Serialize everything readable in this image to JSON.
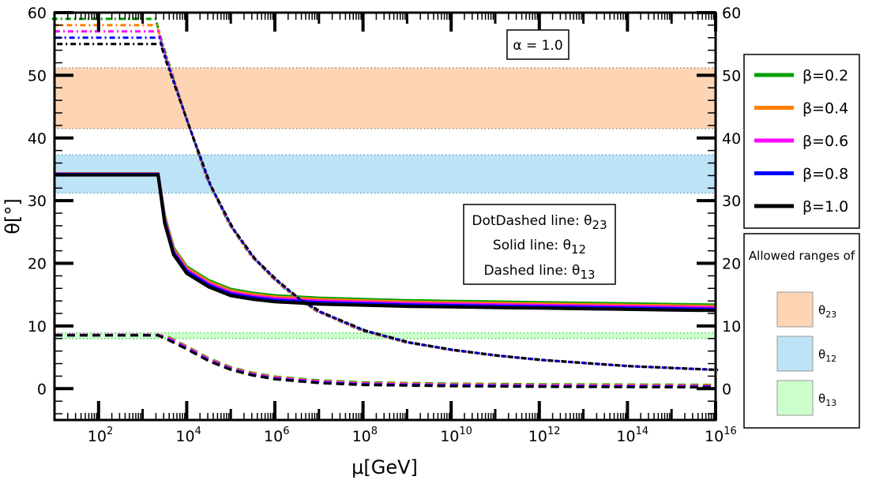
{
  "chart_data": {
    "type": "line",
    "xlabel": "μ[GeV]",
    "ylabel": "θ[°]",
    "xscale": "log10",
    "xlim_log10": [
      1,
      16
    ],
    "ylim": [
      -5,
      60
    ],
    "x_tick_exponents": [
      2,
      4,
      6,
      8,
      10,
      12,
      14,
      16
    ],
    "x_tick_base": "10",
    "y_ticks": [
      0,
      10,
      20,
      30,
      40,
      50,
      60
    ],
    "annotation_alpha": "α = 1.0",
    "line_style_box": {
      "dotdashed": "DotDashed line: θ",
      "dotdashed_sub": "23",
      "solid": "Solid line: θ",
      "solid_sub": "12",
      "dashed": "Dashed line: θ",
      "dashed_sub": "13"
    },
    "bands": [
      {
        "name": "θ",
        "sub": "23",
        "y0": 41.5,
        "y1": 51.2,
        "color": "#fdd5b4",
        "edge": "#808080"
      },
      {
        "name": "θ",
        "sub": "12",
        "y0": 31.2,
        "y1": 37.3,
        "color": "#bde3f6",
        "edge": "#5a9ab5"
      },
      {
        "name": "θ",
        "sub": "13",
        "y0": 8.0,
        "y1": 8.9,
        "color": "#ccffcc",
        "edge": "#33cc33"
      }
    ],
    "allowed_ranges_title": "Allowed ranges of",
    "series": [
      {
        "name": "β=0.2",
        "color": "#00a000",
        "theta23_start": 59.0,
        "theta12_start": 34.3,
        "theta13_start": 8.6
      },
      {
        "name": "β=0.4",
        "color": "#ff7f00",
        "theta23_start": 58.0,
        "theta12_start": 34.3,
        "theta13_start": 8.6
      },
      {
        "name": "β=0.6",
        "color": "#ff00ff",
        "theta23_start": 57.0,
        "theta12_start": 34.2,
        "theta13_start": 8.6
      },
      {
        "name": "β=0.8",
        "color": "#0000ff",
        "theta23_start": 56.0,
        "theta12_start": 34.2,
        "theta13_start": 8.5
      },
      {
        "name": "β=1.0",
        "color": "#000000",
        "theta23_start": 55.0,
        "theta12_start": 34.1,
        "theta13_start": 8.5
      }
    ],
    "curves": {
      "theta23_log10mu": [
        1,
        3.35,
        3.5,
        4,
        4.5,
        5,
        5.5,
        6,
        6.5,
        7,
        8,
        9,
        10,
        11,
        12,
        13,
        14,
        15,
        16
      ],
      "theta23_values": [
        57,
        57,
        53.5,
        43,
        33,
        26,
        21,
        17.5,
        14.5,
        12.3,
        9.3,
        7.4,
        6.2,
        5.3,
        4.6,
        4.1,
        3.6,
        3.3,
        3.0
      ],
      "theta12_log10mu": [
        1,
        3.35,
        3.5,
        3.7,
        4,
        4.5,
        5,
        5.5,
        6,
        7,
        8,
        9,
        10,
        11,
        12,
        13,
        14,
        15,
        16
      ],
      "theta12_values": [
        34.3,
        34.3,
        27,
        22,
        19,
        16.8,
        15.4,
        14.8,
        14.4,
        14.0,
        13.8,
        13.6,
        13.5,
        13.4,
        13.3,
        13.2,
        13.1,
        13.0,
        12.9
      ],
      "theta13_log10mu": [
        1,
        3.35,
        3.6,
        4,
        4.5,
        5,
        5.5,
        6,
        7,
        8,
        9,
        10,
        12,
        14,
        16
      ],
      "theta13_values": [
        8.5,
        8.5,
        7.9,
        6.5,
        4.6,
        3.2,
        2.3,
        1.7,
        1.1,
        0.8,
        0.7,
        0.6,
        0.5,
        0.45,
        0.4
      ]
    }
  }
}
